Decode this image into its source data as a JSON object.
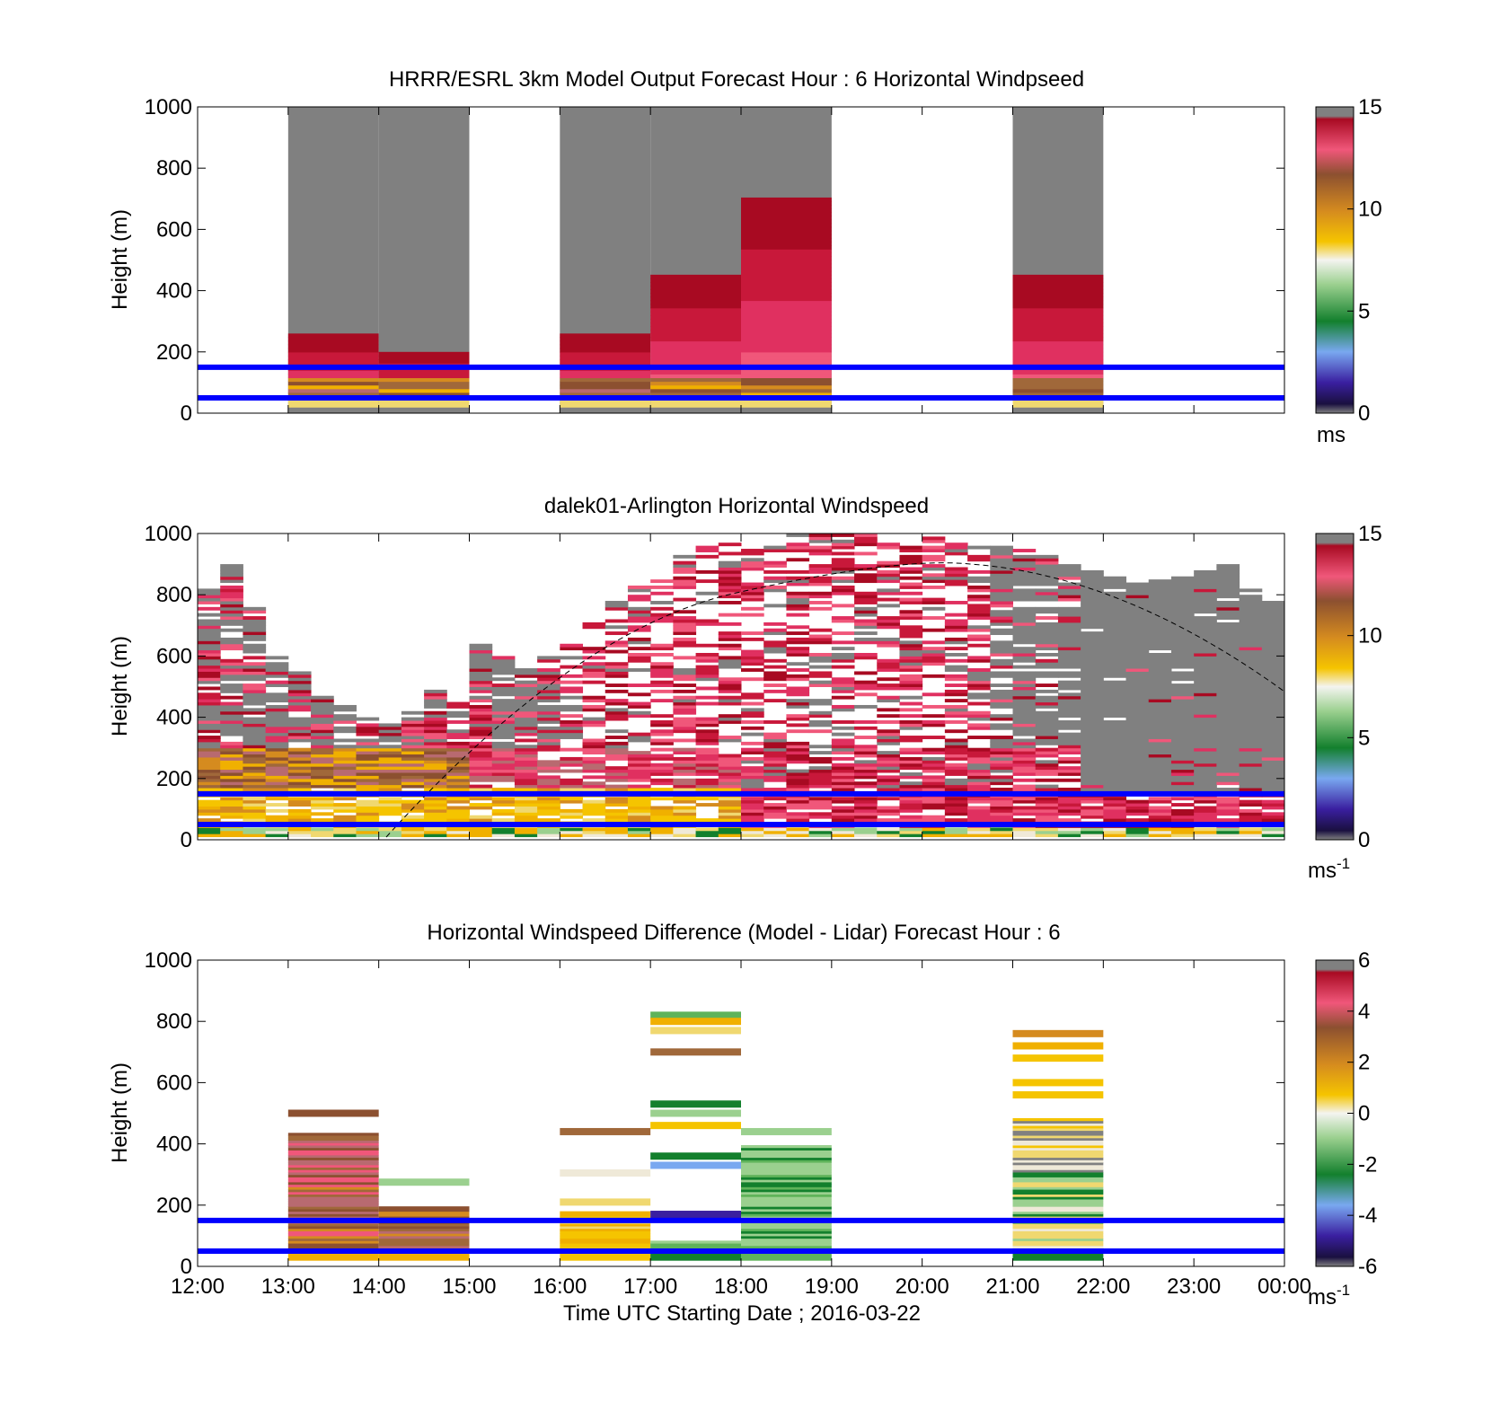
{
  "figure": {
    "xlabel": "Time UTC  Starting Date ; 2016-03-22",
    "x_ticks": [
      "12:00",
      "13:00",
      "14:00",
      "15:00",
      "16:00",
      "17:00",
      "18:00",
      "19:00",
      "20:00",
      "21:00",
      "22:00",
      "23:00",
      "00:00"
    ],
    "ylabel": "Height (m)",
    "y_ticks": [
      "0",
      "200",
      "400",
      "600",
      "800",
      "1000"
    ],
    "reference_heights_m": [
      50,
      150
    ],
    "reference_line_color": "#0000ff"
  },
  "chart_data": [
    {
      "type": "heatmap",
      "title": "HRRR/ESRL 3km Model Output   Forecast Hour : 6 Horizontal Windpseed",
      "ylabel": "Height (m)",
      "ylim": [
        0,
        1000
      ],
      "colorbar": {
        "label": "ms",
        "ticks": [
          "0",
          "5",
          "10",
          "15"
        ],
        "range": [
          0,
          15
        ]
      },
      "x_hours_from_start": [
        1,
        2,
        4,
        5,
        6,
        9
      ],
      "model_columns": [
        {
          "time": "13:00",
          "top_m": 250
        },
        {
          "time": "14:00",
          "top_m": 200
        },
        {
          "time": "16:00",
          "top_m": 250
        },
        {
          "time": "17:00",
          "top_m": 450
        },
        {
          "time": "18:00",
          "top_m": 700
        },
        {
          "time": "21:00",
          "top_m": 450
        }
      ]
    },
    {
      "type": "heatmap",
      "title": "dalek01-Arlington  Horizontal Windspeed",
      "ylabel": "Height (m)",
      "ylim": [
        0,
        1000
      ],
      "colorbar": {
        "label": "ms",
        "label_exp": "-1",
        "ticks": [
          "0",
          "5",
          "10",
          "15"
        ],
        "range": [
          0,
          15
        ]
      }
    },
    {
      "type": "heatmap",
      "title": "Horizontal Windspeed Difference (Model - Lidar) Forecast Hour : 6",
      "ylabel": "Height (m)",
      "ylim": [
        0,
        1000
      ],
      "colorbar": {
        "label": "ms",
        "label_exp": "-1",
        "ticks": [
          "-6",
          "-4",
          "-2",
          "0",
          "2",
          "4",
          "6"
        ],
        "range": [
          -6,
          6
        ]
      }
    }
  ]
}
